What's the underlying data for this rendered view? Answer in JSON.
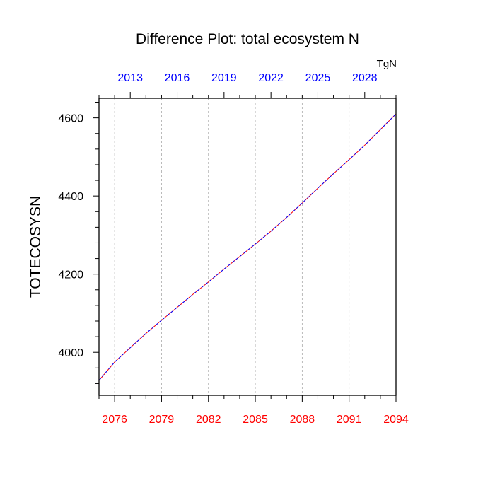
{
  "chart_data": {
    "type": "line",
    "title": "Difference Plot: total ecosystem N",
    "units_label": "TgN",
    "ylabel": "TOTECOSYSN",
    "xlabel": "",
    "x_bottom": {
      "range": [
        2075,
        2094
      ],
      "ticks": [
        2076,
        2079,
        2082,
        2085,
        2088,
        2091,
        2094
      ],
      "color": "#ff0000"
    },
    "x_top": {
      "range": [
        2011,
        2030
      ],
      "ticks": [
        2013,
        2016,
        2019,
        2022,
        2025,
        2028
      ],
      "color": "#0000ff"
    },
    "ylim": [
      3890,
      4650
    ],
    "y_ticks": [
      4000,
      4200,
      4400,
      4600
    ],
    "grid": "vertical dashed at bottom-axis ticks",
    "series": [
      {
        "line_colors": [
          "#0000ff",
          "#ff0000"
        ],
        "x": [
          2075,
          2076,
          2077,
          2078,
          2079,
          2080,
          2081,
          2082,
          2083,
          2084,
          2085,
          2086,
          2087,
          2088,
          2089,
          2090,
          2091,
          2092,
          2093,
          2094
        ],
        "values": [
          3928,
          3975,
          4012,
          4048,
          4082,
          4115,
          4148,
          4180,
          4213,
          4245,
          4277,
          4310,
          4345,
          4382,
          4420,
          4457,
          4493,
          4530,
          4570,
          4610
        ]
      }
    ]
  }
}
